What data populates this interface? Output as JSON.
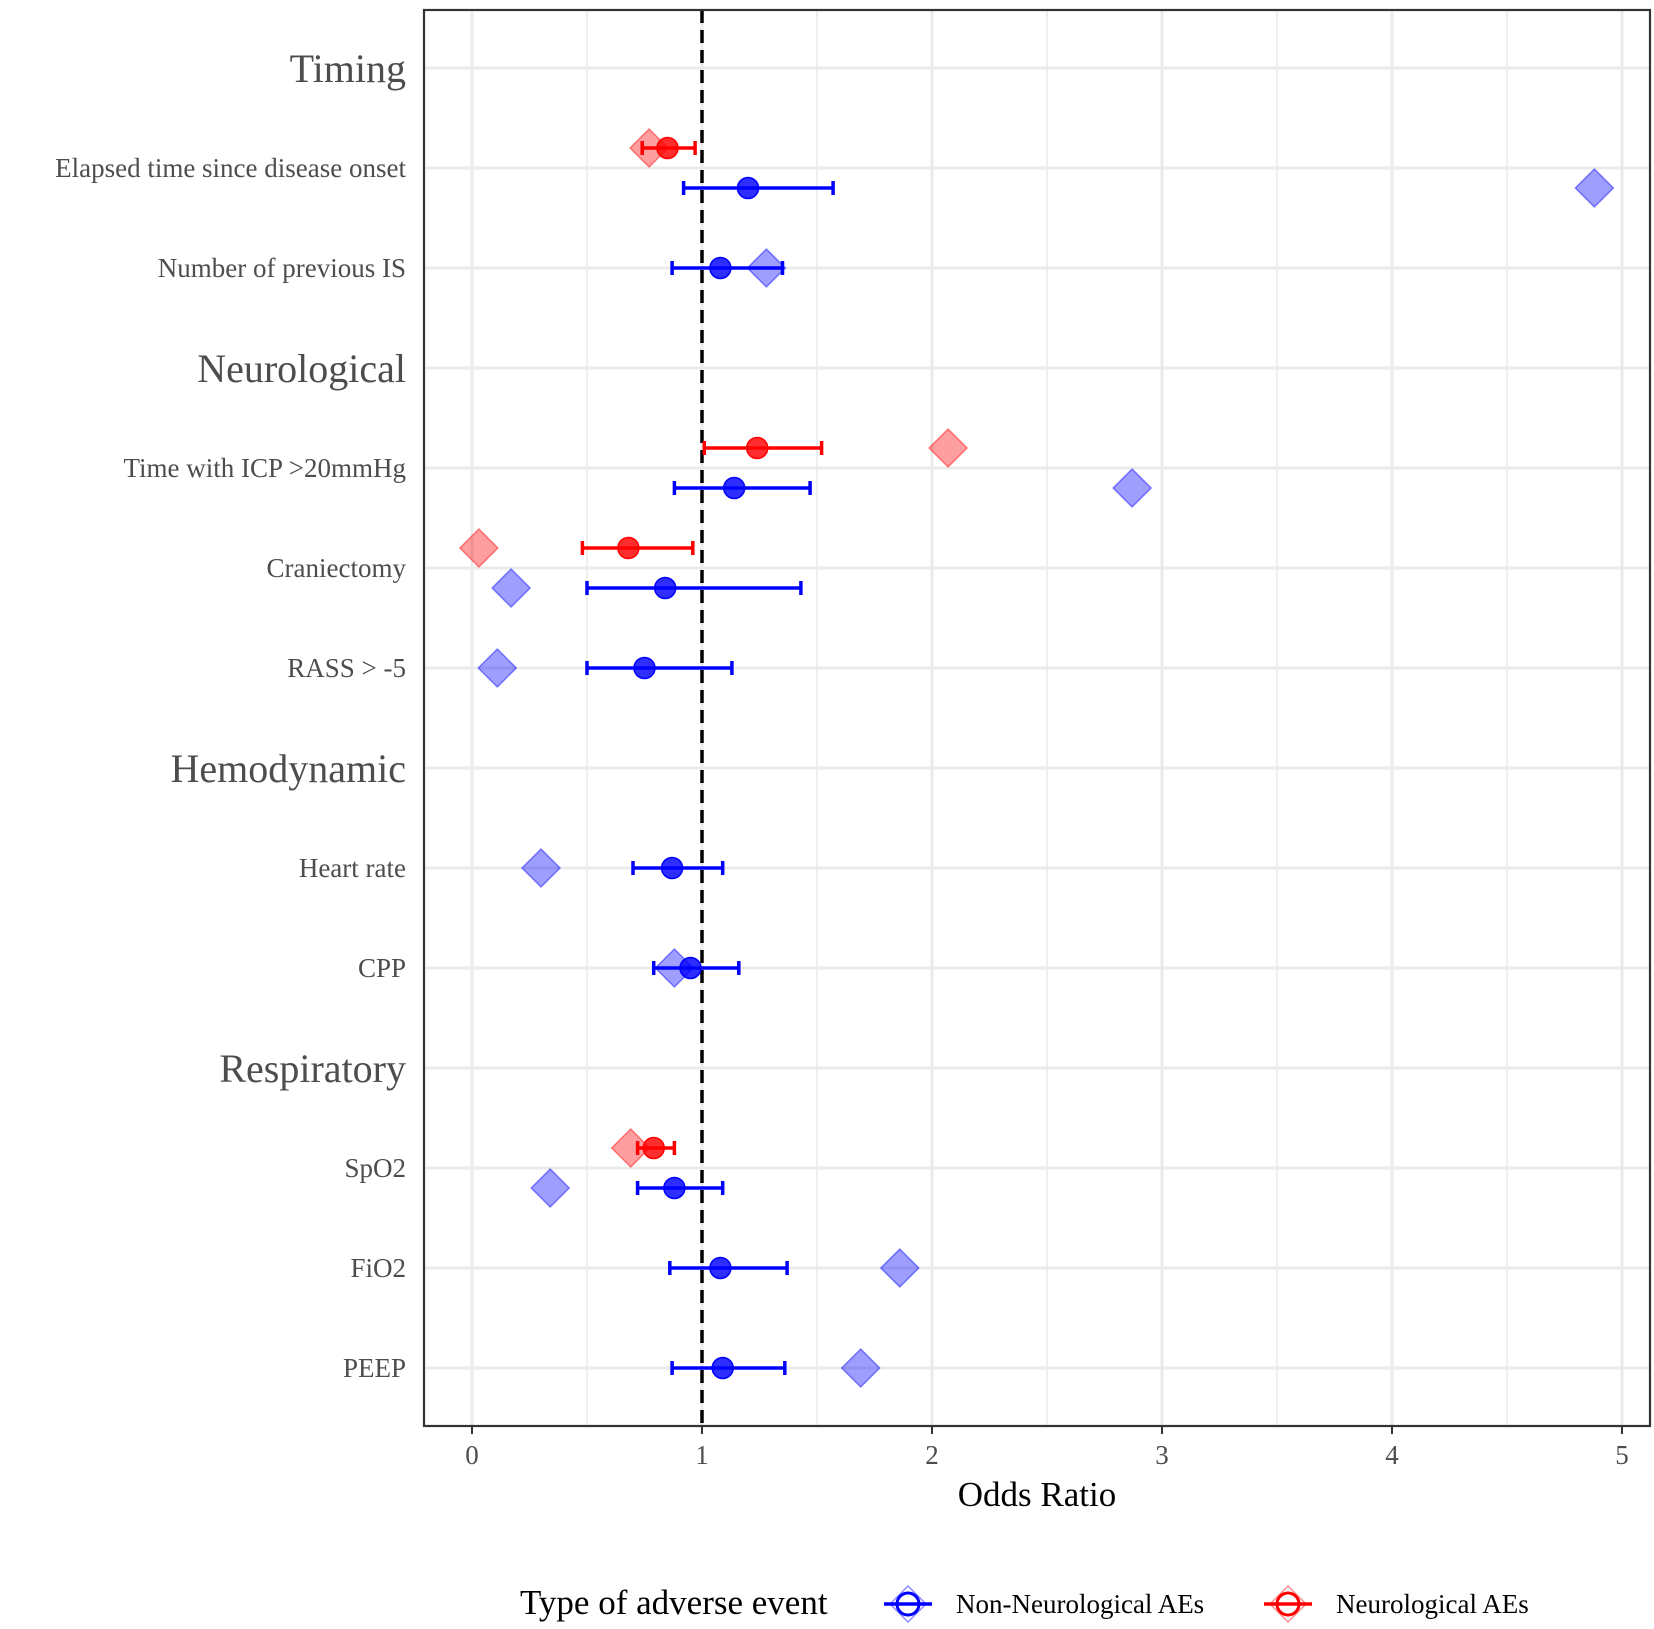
{
  "chart_data": {
    "type": "forest",
    "xlabel": "Odds Ratio",
    "xlim": [
      -0.2,
      5.12
    ],
    "x_ticks": [
      0,
      1,
      2,
      3,
      4,
      5
    ],
    "x_tick_labels": [
      "0",
      "1",
      "2",
      "3",
      "4",
      "5"
    ],
    "reference_line": 1,
    "grid": true,
    "legend": {
      "title": "Type of adverse event",
      "position": "bottom",
      "entries": [
        {
          "name": "Non-Neurological AEs",
          "color": "#0000ff"
        },
        {
          "name": "Neurological AEs",
          "color": "#ff0000"
        }
      ]
    },
    "rows": [
      {
        "label": "Timing",
        "kind": "section"
      },
      {
        "label": "Elapsed time since disease onset",
        "kind": "variable"
      },
      {
        "label": "Number of previous IS",
        "kind": "variable"
      },
      {
        "label": "Neurological",
        "kind": "section"
      },
      {
        "label": "Time with ICP >20mmHg",
        "kind": "variable"
      },
      {
        "label": "Craniectomy",
        "kind": "variable"
      },
      {
        "label": "RASS > -5",
        "kind": "variable"
      },
      {
        "label": "Hemodynamic",
        "kind": "section"
      },
      {
        "label": "Heart rate",
        "kind": "variable"
      },
      {
        "label": "CPP",
        "kind": "variable"
      },
      {
        "label": "Respiratory",
        "kind": "section"
      },
      {
        "label": "SpO2",
        "kind": "variable"
      },
      {
        "label": "FiO2",
        "kind": "variable"
      },
      {
        "label": "PEEP",
        "kind": "variable"
      }
    ],
    "series": [
      {
        "name": "Non-Neurological AEs",
        "color": "#0000ff",
        "estimates": [
          {
            "variable": "Elapsed time since disease onset",
            "or": 1.2,
            "lower": 0.92,
            "upper": 1.57,
            "diamond": 4.88
          },
          {
            "variable": "Number of previous IS",
            "or": 1.08,
            "lower": 0.87,
            "upper": 1.35,
            "diamond": 1.28
          },
          {
            "variable": "Time with ICP >20mmHg",
            "or": 1.14,
            "lower": 0.88,
            "upper": 1.47,
            "diamond": 2.87
          },
          {
            "variable": "Craniectomy",
            "or": 0.84,
            "lower": 0.5,
            "upper": 1.43,
            "diamond": 0.17
          },
          {
            "variable": "RASS > -5",
            "or": 0.75,
            "lower": 0.5,
            "upper": 1.13,
            "diamond": 0.11
          },
          {
            "variable": "Heart rate",
            "or": 0.87,
            "lower": 0.7,
            "upper": 1.09,
            "diamond": 0.3
          },
          {
            "variable": "CPP",
            "or": 0.95,
            "lower": 0.79,
            "upper": 1.16,
            "diamond": 0.88
          },
          {
            "variable": "SpO2",
            "or": 0.88,
            "lower": 0.72,
            "upper": 1.09,
            "diamond": 0.34
          },
          {
            "variable": "FiO2",
            "or": 1.08,
            "lower": 0.86,
            "upper": 1.37,
            "diamond": 1.86
          },
          {
            "variable": "PEEP",
            "or": 1.09,
            "lower": 0.87,
            "upper": 1.36,
            "diamond": 1.69
          }
        ]
      },
      {
        "name": "Neurological AEs",
        "color": "#ff0000",
        "estimates": [
          {
            "variable": "Elapsed time since disease onset",
            "or": 0.85,
            "lower": 0.74,
            "upper": 0.97,
            "diamond": 0.77
          },
          {
            "variable": "Time with ICP >20mmHg",
            "or": 1.24,
            "lower": 1.01,
            "upper": 1.52,
            "diamond": 2.07
          },
          {
            "variable": "Craniectomy",
            "or": 0.68,
            "lower": 0.48,
            "upper": 0.96,
            "diamond": 0.03
          },
          {
            "variable": "SpO2",
            "or": 0.79,
            "lower": 0.72,
            "upper": 0.88,
            "diamond": 0.69
          }
        ]
      }
    ]
  }
}
